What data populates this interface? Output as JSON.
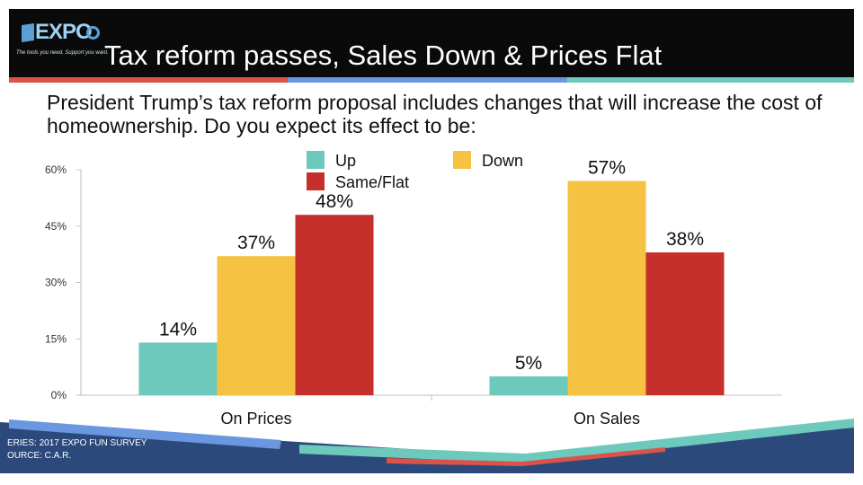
{
  "header": {
    "logo_text": "EXPO",
    "logo_tagline": "The tools you need. Support you want.",
    "title": "Tax reform passes, Sales Down & Prices Flat"
  },
  "question": "President Trump’s tax reform proposal includes changes that will increase the cost of homeownership. Do you expect its effect to be:",
  "chart_data": {
    "type": "bar",
    "categories": [
      "On Prices",
      "On Sales"
    ],
    "series": [
      {
        "name": "Up",
        "values": [
          14,
          5
        ],
        "labels": [
          "14%",
          "5%"
        ],
        "color": "#6cc9bb"
      },
      {
        "name": "Down",
        "values": [
          37,
          57
        ],
        "labels": [
          "37%",
          "57%"
        ],
        "color": "#f5c242"
      },
      {
        "name": "Same/Flat",
        "values": [
          48,
          38
        ],
        "labels": [
          "48%",
          "38%"
        ],
        "color": "#c5302a"
      }
    ],
    "ylim": [
      0,
      60
    ],
    "yticks": [
      0,
      15,
      30,
      45,
      60
    ],
    "ytick_labels": [
      "0%",
      "15%",
      "30%",
      "45%",
      "60%"
    ],
    "grid": false,
    "legend_position": "top"
  },
  "footer": {
    "series_line": "ERIES: 2017 EXPO FUN SURVEY",
    "source_line": "OURCE:  C.A.R."
  }
}
